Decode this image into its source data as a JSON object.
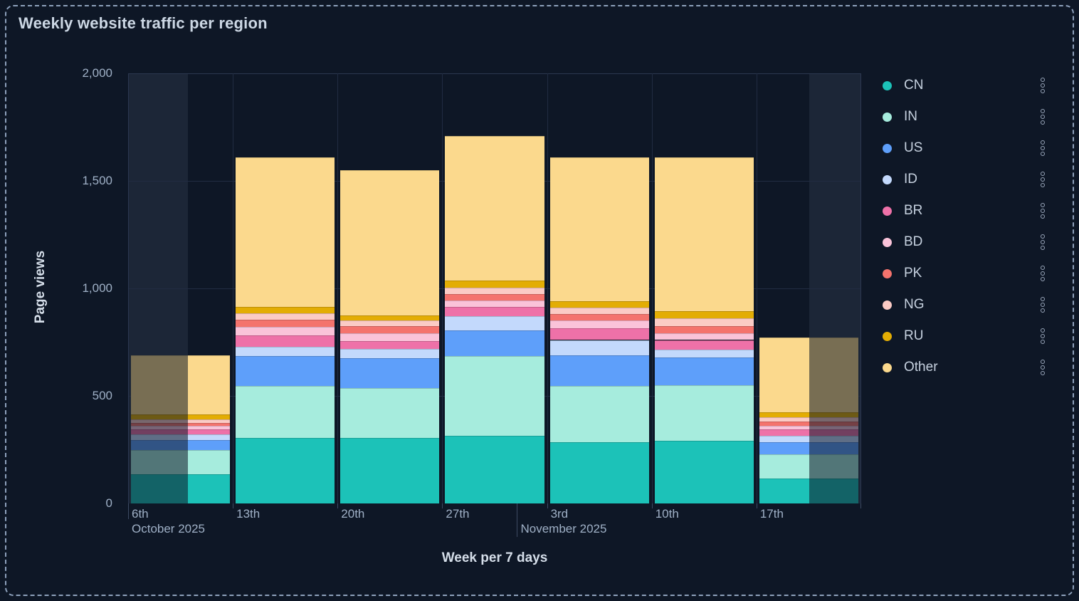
{
  "panel": {
    "title": "Weekly website traffic per region"
  },
  "theme": {
    "background": "#0e1726",
    "dashed_border": "#8da0bb",
    "grid": "#212c42",
    "grid_edge": "#2b3750",
    "out_of_range_bg": "#1c2637",
    "dim_overlay": "rgba(13,21,37,0.55)",
    "axis_text": "#9fb0c6",
    "bright_text": "#d5dee9",
    "legend_text": "#c6d1df",
    "tick_mark": "#3d4a63"
  },
  "legend": {
    "kebab_icon": "kebab-menu-icon"
  },
  "chart_data": {
    "type": "bar",
    "stacked": true,
    "title": "Weekly website traffic per region",
    "xlabel": "Week per 7 days",
    "ylabel": "Page views",
    "ylim": [
      0,
      2000
    ],
    "grid": true,
    "legend_position": "right",
    "y_ticks": [
      {
        "value": 0,
        "label": "0"
      },
      {
        "value": 500,
        "label": "500"
      },
      {
        "value": 1000,
        "label": "1,000"
      },
      {
        "value": 1500,
        "label": "1,500"
      },
      {
        "value": 2000,
        "label": "2,000"
      }
    ],
    "categories": [
      "6th",
      "13th",
      "20th",
      "27th",
      "3rd",
      "10th",
      "17th"
    ],
    "month_labels": [
      {
        "text": "October 2025",
        "tick_weeks": 0
      },
      {
        "text": "November 2025",
        "tick_weeks": 3.714
      }
    ],
    "series": [
      {
        "name": "CN",
        "color": "#1cc2b8",
        "values": [
          135,
          305,
          305,
          315,
          285,
          290,
          115
        ]
      },
      {
        "name": "IN",
        "color": "#a6ecdd",
        "values": [
          115,
          240,
          230,
          370,
          260,
          260,
          115
        ]
      },
      {
        "name": "US",
        "color": "#5e9ffa",
        "values": [
          45,
          140,
          140,
          120,
          145,
          130,
          55
        ]
      },
      {
        "name": "ID",
        "color": "#c3d9fc",
        "values": [
          25,
          45,
          45,
          65,
          70,
          35,
          30
        ]
      },
      {
        "name": "BR",
        "color": "#ee71a8",
        "values": [
          25,
          50,
          35,
          45,
          55,
          45,
          30
        ]
      },
      {
        "name": "BD",
        "color": "#fac3d9",
        "values": [
          15,
          40,
          35,
          30,
          35,
          30,
          15
        ]
      },
      {
        "name": "PK",
        "color": "#f4736d",
        "values": [
          15,
          35,
          35,
          30,
          30,
          35,
          20
        ]
      },
      {
        "name": "NG",
        "color": "#fbcbc5",
        "values": [
          15,
          30,
          25,
          30,
          30,
          35,
          20
        ]
      },
      {
        "name": "RU",
        "color": "#e3ad04",
        "values": [
          25,
          30,
          25,
          30,
          30,
          35,
          25
        ]
      },
      {
        "name": "Other",
        "color": "#fbd98d",
        "values": [
          275,
          695,
          675,
          675,
          670,
          715,
          345
        ]
      }
    ],
    "totals": [
      690,
      1610,
      1550,
      1710,
      1610,
      1610,
      770
    ],
    "out_of_range_shading_weeks": [
      {
        "from": 0,
        "to": 0.571
      },
      {
        "from": 6.504,
        "to": 7
      }
    ]
  }
}
